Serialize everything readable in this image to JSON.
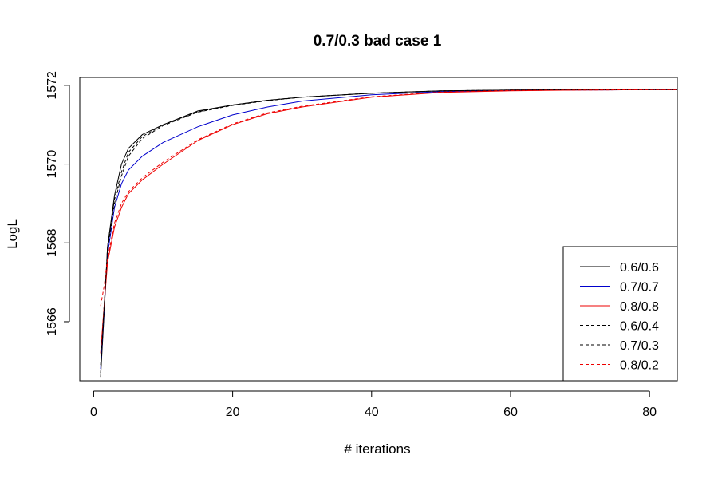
{
  "chart_data": {
    "type": "line",
    "title": "0.7/0.3 bad case 1",
    "xlabel": "# iterations",
    "ylabel": "LogL",
    "xlim": [
      -2,
      84
    ],
    "ylim": [
      1564.5,
      1572.2
    ],
    "x_ticks": [
      0,
      20,
      40,
      60,
      80
    ],
    "y_ticks": [
      1566,
      1568,
      1570,
      1572
    ],
    "grid": false,
    "legend_position": "bottom-right",
    "series": [
      {
        "name": "0.6/0.6",
        "color": "#000000",
        "linestyle": "solid",
        "x": [
          1,
          1.5,
          2,
          3,
          4,
          5,
          7,
          10,
          15,
          20,
          25,
          30,
          40,
          50,
          60,
          70,
          80,
          84
        ],
        "y": [
          1564.6,
          1566.2,
          1567.9,
          1569.2,
          1570.0,
          1570.4,
          1570.75,
          1571.0,
          1571.35,
          1571.5,
          1571.62,
          1571.7,
          1571.8,
          1571.86,
          1571.88,
          1571.89,
          1571.89,
          1571.89
        ]
      },
      {
        "name": "0.7/0.7",
        "color": "#0000cc",
        "linestyle": "solid",
        "x": [
          1,
          1.5,
          2,
          3,
          4,
          5,
          7,
          10,
          15,
          20,
          25,
          30,
          40,
          50,
          60,
          70,
          80,
          84
        ],
        "y": [
          1564.8,
          1566.3,
          1567.7,
          1568.9,
          1569.5,
          1569.85,
          1570.2,
          1570.55,
          1570.95,
          1571.25,
          1571.45,
          1571.6,
          1571.76,
          1571.84,
          1571.87,
          1571.88,
          1571.89,
          1571.89
        ]
      },
      {
        "name": "0.8/0.8",
        "color": "#ee0000",
        "linestyle": "solid",
        "x": [
          1,
          1.5,
          2,
          3,
          4,
          5,
          7,
          10,
          15,
          20,
          25,
          30,
          40,
          50,
          60,
          70,
          80,
          84
        ],
        "y": [
          1565.2,
          1566.4,
          1567.5,
          1568.4,
          1568.9,
          1569.25,
          1569.6,
          1570.0,
          1570.6,
          1571.0,
          1571.28,
          1571.45,
          1571.7,
          1571.82,
          1571.86,
          1571.88,
          1571.89,
          1571.89
        ]
      },
      {
        "name": "0.6/0.4",
        "color": "#000000",
        "linestyle": "dashed",
        "x": [
          1,
          1.5,
          2,
          3,
          4,
          5,
          7,
          10,
          15,
          20,
          25,
          30,
          40,
          50,
          60,
          70,
          80,
          84
        ],
        "y": [
          1564.7,
          1566.3,
          1567.9,
          1569.1,
          1569.8,
          1570.3,
          1570.7,
          1571.0,
          1571.33,
          1571.5,
          1571.62,
          1571.7,
          1571.8,
          1571.86,
          1571.88,
          1571.89,
          1571.89,
          1571.89
        ]
      },
      {
        "name": "0.7/0.3",
        "color": "#000000",
        "linestyle": "dashed",
        "x": [
          1,
          1.5,
          2,
          3,
          4,
          5,
          7,
          10,
          15,
          20,
          25,
          30,
          40,
          50,
          60,
          70,
          80,
          84
        ],
        "y": [
          1564.9,
          1566.4,
          1567.8,
          1569.0,
          1569.7,
          1570.2,
          1570.65,
          1570.98,
          1571.32,
          1571.49,
          1571.61,
          1571.7,
          1571.8,
          1571.86,
          1571.88,
          1571.89,
          1571.89,
          1571.89
        ]
      },
      {
        "name": "0.8/0.2",
        "color": "#ee0000",
        "linestyle": "dashed",
        "x": [
          1,
          1.5,
          2,
          3,
          4,
          5,
          7,
          10,
          15,
          20,
          25,
          30,
          40,
          50,
          60,
          70,
          80,
          84
        ],
        "y": [
          1566.4,
          1566.9,
          1567.6,
          1568.5,
          1569.0,
          1569.3,
          1569.65,
          1570.05,
          1570.62,
          1571.02,
          1571.3,
          1571.47,
          1571.71,
          1571.83,
          1571.87,
          1571.88,
          1571.89,
          1571.89
        ]
      }
    ]
  }
}
